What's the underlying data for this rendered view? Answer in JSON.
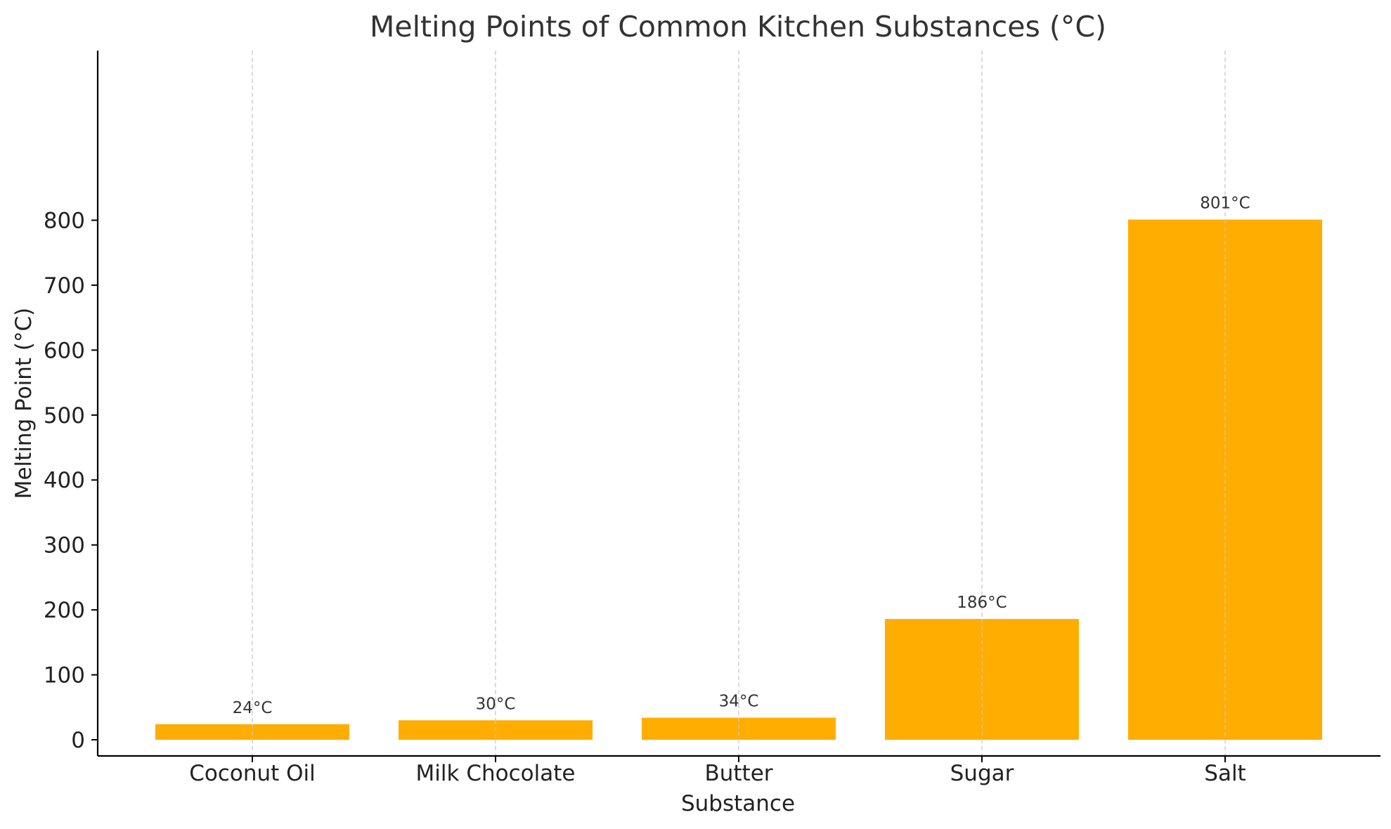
{
  "chart_data": {
    "type": "bar",
    "title": "Melting Points of Common Kitchen Substances (°C)",
    "xlabel": "Substance",
    "ylabel": "Melting Point (°C)",
    "categories": [
      "Coconut Oil",
      "Milk Chocolate",
      "Butter",
      "Sugar",
      "Salt"
    ],
    "values": [
      24,
      30,
      34,
      186,
      801
    ],
    "data_labels": [
      "24°C",
      "30°C",
      "34°C",
      "186°C",
      "801°C"
    ],
    "yticks": [
      0,
      100,
      200,
      300,
      400,
      500,
      600,
      700,
      800
    ],
    "ylim": [
      -20,
      850
    ],
    "grid": "x-axis dashed",
    "bar_color": "#ffad00",
    "grid_color": "#c8c8c8",
    "axis_color": "#000000"
  }
}
